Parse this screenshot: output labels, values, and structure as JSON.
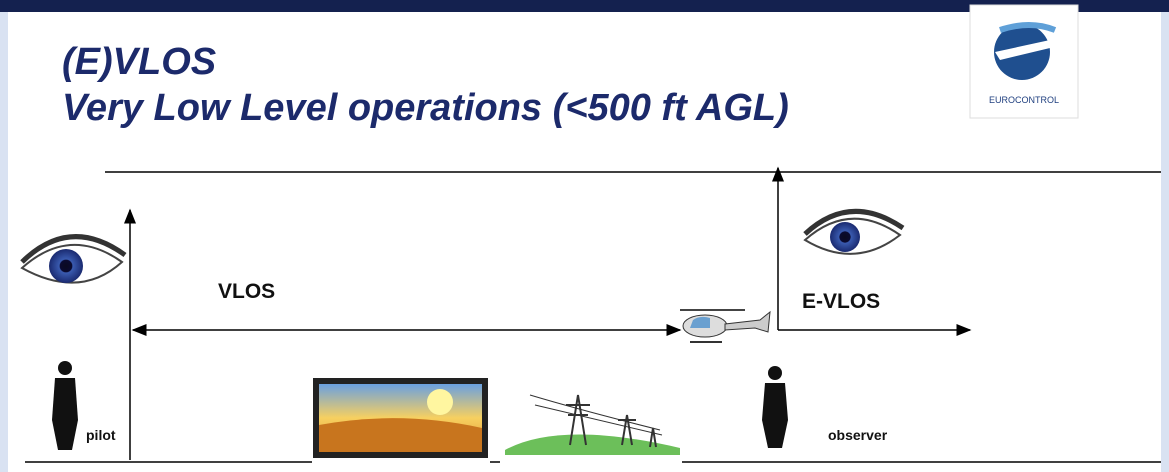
{
  "header": {
    "title": "(E)VLOS",
    "subtitle": "Very Low Level operations (<500 ft AGL)"
  },
  "logo": {
    "label": "EUROCONTROL"
  },
  "diagram": {
    "vlos_label": "VLOS",
    "evlos_label": "E-VLOS",
    "pilot_label": "pilot",
    "observer_label": "observer"
  }
}
